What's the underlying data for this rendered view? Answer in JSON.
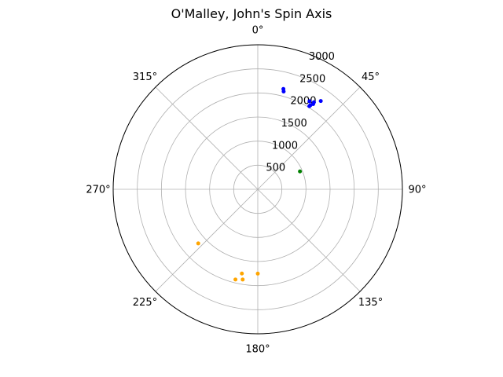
{
  "chart_data": {
    "type": "scatter",
    "projection": "polar",
    "title": "O'Malley, John's Spin Axis",
    "theta_zero": "N",
    "theta_direction": "clockwise",
    "r_max": 3000,
    "grid": true,
    "theta_ticks": [
      {
        "deg": 0,
        "label": "0°"
      },
      {
        "deg": 45,
        "label": "45°"
      },
      {
        "deg": 90,
        "label": "90°"
      },
      {
        "deg": 135,
        "label": "135°"
      },
      {
        "deg": 180,
        "label": "180°"
      },
      {
        "deg": 225,
        "label": "225°"
      },
      {
        "deg": 270,
        "label": "270°"
      },
      {
        "deg": 315,
        "label": "315°"
      }
    ],
    "r_ticks": [
      {
        "value": 500,
        "label": "500"
      },
      {
        "value": 1000,
        "label": "1000"
      },
      {
        "value": 1500,
        "label": "1500"
      },
      {
        "value": 2000,
        "label": "2000"
      },
      {
        "value": 2500,
        "label": "2500"
      },
      {
        "value": 3000,
        "label": "3000"
      }
    ],
    "series": [
      {
        "color": "#0000ff",
        "points": [
          {
            "theta": 14.3,
            "r": 2150
          },
          {
            "theta": 14.8,
            "r": 2100
          },
          {
            "theta": 32.8,
            "r": 2150
          },
          {
            "theta": 33.0,
            "r": 2110
          },
          {
            "theta": 30.4,
            "r": 2120
          },
          {
            "theta": 32.0,
            "r": 2060
          },
          {
            "theta": 31.8,
            "r": 2030
          },
          {
            "theta": 35.5,
            "r": 2250
          }
        ]
      },
      {
        "color": "#008000",
        "points": [
          {
            "theta": 67.0,
            "r": 950
          }
        ]
      },
      {
        "color": "#ffa500",
        "points": [
          {
            "theta": 180.0,
            "r": 1750
          },
          {
            "theta": 189.5,
            "r": 1900
          },
          {
            "theta": 190.7,
            "r": 1780
          },
          {
            "theta": 193.9,
            "r": 1930
          },
          {
            "theta": 227.7,
            "r": 1670
          }
        ]
      }
    ]
  }
}
